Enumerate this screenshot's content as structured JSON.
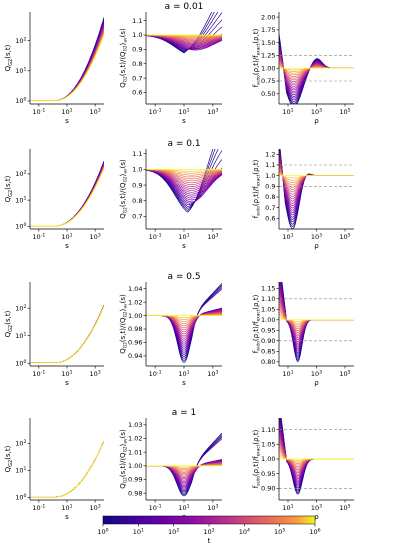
{
  "chart_data": {
    "type": "line",
    "colormap": "plasma",
    "colorbar": {
      "label": "t",
      "ticks": [
        "10^0",
        "10^1",
        "10^2",
        "10^3",
        "10^4",
        "10^5",
        "10^6"
      ],
      "range": [
        1,
        1000000
      ],
      "scale": "log"
    },
    "rows": [
      {
        "title": "a = 0.01",
        "panels": [
          {
            "xlabel": "s",
            "ylabel": "Q_{G2}(s,t)",
            "xscale": "log",
            "yscale": "log",
            "xticks": [
              "10^-1",
              "10^1",
              "10^3"
            ],
            "yticks": [
              "10^0",
              "10^1",
              "10^2"
            ]
          },
          {
            "xlabel": "s",
            "ylabel": "Q_{G2}(s,t)/⟨Q_{G2}⟩_{av}(s)",
            "xscale": "log",
            "xticks": [
              "10^-1",
              "10^1",
              "10^3"
            ],
            "yticks": [
              "0.6",
              "0.7",
              "0.8",
              "0.9",
              "1.0",
              "1.1"
            ],
            "ylim": [
              0.52,
              1.16
            ]
          },
          {
            "xlabel": "ρ",
            "ylabel": "f_{auto}(ρ,t)/f_{exact}(ρ,t)",
            "xscale": "log",
            "xticks": [
              "10^1",
              "10^3",
              "10^5"
            ],
            "yticks": [
              "0.50",
              "0.75",
              "1.00",
              "1.25",
              "1.50",
              "1.75",
              "2.00"
            ],
            "ylim": [
              0.3,
              2.1
            ]
          }
        ]
      },
      {
        "title": "a = 0.1",
        "panels": [
          {
            "xlabel": "s",
            "ylabel": "Q_{G2}(s,t)",
            "xscale": "log",
            "yscale": "log",
            "xticks": [
              "10^-1",
              "10^1",
              "10^3"
            ],
            "yticks": [
              "10^0",
              "10^1",
              "10^2"
            ]
          },
          {
            "xlabel": "s",
            "ylabel": "Q_{G2}(s,t)/⟨Q_{G2}⟩_{av}(s)",
            "xscale": "log",
            "xticks": [
              "10^-1",
              "10^1",
              "10^3"
            ],
            "yticks": [
              "0.7",
              "0.8",
              "0.9",
              "1.0",
              "1.1"
            ],
            "ylim": [
              0.62,
              1.13
            ]
          },
          {
            "xlabel": "ρ",
            "ylabel": "f_{auto}(ρ,t)/f_{exact}(ρ,t)",
            "xscale": "log",
            "xticks": [
              "10^1",
              "10^3",
              "10^5"
            ],
            "yticks": [
              "0.6",
              "0.7",
              "0.8",
              "0.9",
              "1.0",
              "1.1",
              "1.2"
            ],
            "ylim": [
              0.5,
              1.25
            ]
          }
        ]
      },
      {
        "title": "a = 0.5",
        "panels": [
          {
            "xlabel": "s",
            "ylabel": "Q_{G2}(s,t)",
            "xscale": "log",
            "yscale": "log",
            "xticks": [
              "10^-1",
              "10^1",
              "10^3"
            ],
            "yticks": [
              "10^0",
              "10^1",
              "10^2"
            ]
          },
          {
            "xlabel": "s",
            "ylabel": "Q_{G2}(s,t)/⟨Q_{G2}⟩_{av}(s)",
            "xscale": "log",
            "xticks": [
              "10^-1",
              "10^1",
              "10^3"
            ],
            "yticks": [
              "0.94",
              "0.96",
              "0.98",
              "1.00",
              "1.02",
              "1.04"
            ],
            "ylim": [
              0.925,
              1.05
            ]
          },
          {
            "xlabel": "ρ",
            "ylabel": "f_{auto}(ρ,t)/f_{exact}(ρ,t)",
            "xscale": "log",
            "xticks": [
              "10^1",
              "10^3",
              "10^5"
            ],
            "yticks": [
              "0.80",
              "0.85",
              "0.90",
              "0.95",
              "1.00",
              "1.05",
              "1.10",
              "1.15"
            ],
            "ylim": [
              0.78,
              1.18
            ]
          }
        ]
      },
      {
        "title": "a = 1",
        "panels": [
          {
            "xlabel": "s",
            "ylabel": "Q_{G2}(s,t)",
            "xscale": "log",
            "yscale": "log",
            "xticks": [
              "10^-1",
              "10^1",
              "10^3"
            ],
            "yticks": [
              "10^0",
              "10^1",
              "10^2"
            ]
          },
          {
            "xlabel": "s",
            "ylabel": "Q_{G2}(s,t)/⟨Q_{G2}⟩_{av}(s)",
            "xscale": "log",
            "xticks": [
              "10^-1",
              "10^1",
              "10^3"
            ],
            "yticks": [
              "0.98",
              "0.99",
              "1.00",
              "1.01",
              "1.02",
              "1.03"
            ],
            "ylim": [
              0.975,
              1.035
            ]
          },
          {
            "xlabel": "ρ",
            "ylabel": "f_{auto}(ρ,t)/f_{exact}(ρ,t)",
            "xscale": "log",
            "xticks": [
              "10^1",
              "10^3",
              "10^5"
            ],
            "yticks": [
              "0.90",
              "0.95",
              "1.00",
              "1.05",
              "1.10"
            ],
            "ylim": [
              0.86,
              1.14
            ]
          }
        ]
      }
    ]
  }
}
